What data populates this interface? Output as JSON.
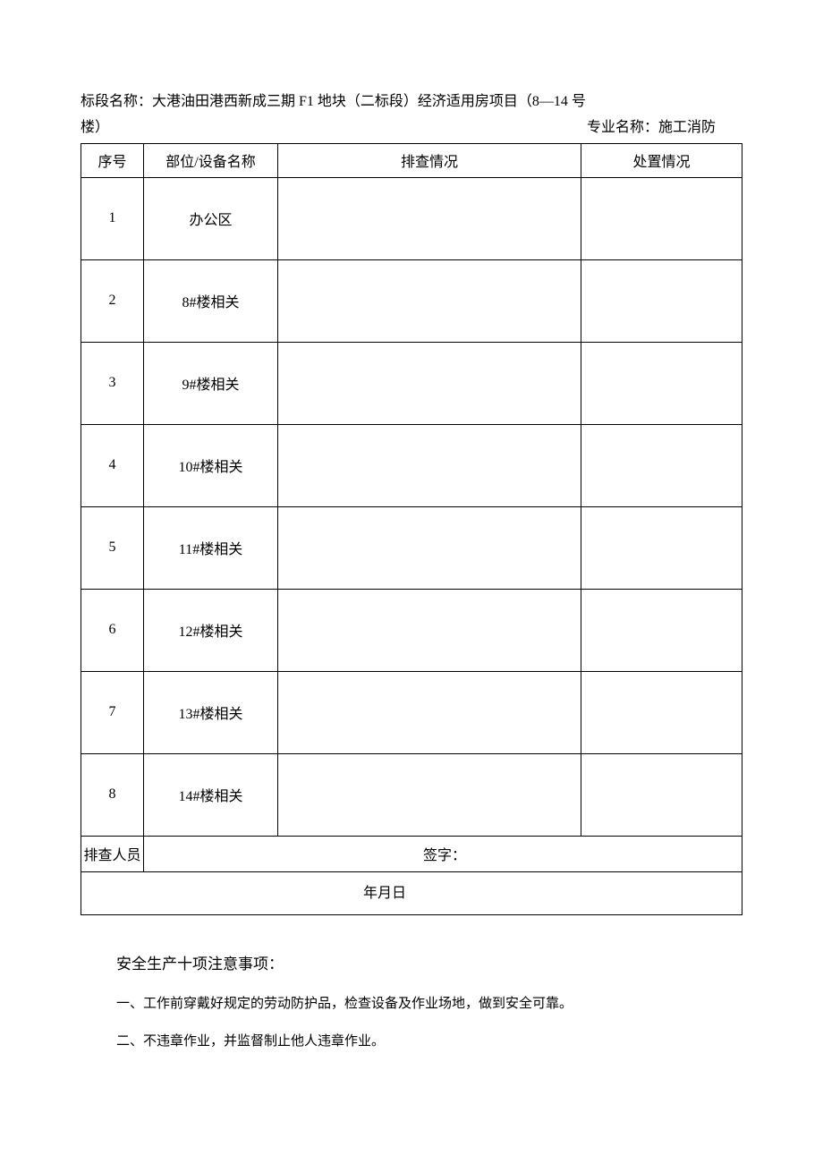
{
  "header": {
    "line1": "标段名称：大港油田港西新成三期 F1 地块（二标段）经济适用房项目（8—14 号",
    "line2_left": "楼）",
    "line2_right": "专业名称：施工消防"
  },
  "table": {
    "columns": [
      "序号",
      "部位/设备名称",
      "排查情况",
      "处置情况"
    ],
    "rows": [
      {
        "seq": "1",
        "name": "办公区",
        "check": "",
        "action": ""
      },
      {
        "seq": "2",
        "name": "8#楼相关",
        "check": "",
        "action": ""
      },
      {
        "seq": "3",
        "name": "9#楼相关",
        "check": "",
        "action": ""
      },
      {
        "seq": "4",
        "name": "10#楼相关",
        "check": "",
        "action": ""
      },
      {
        "seq": "5",
        "name": "11#楼相关",
        "check": "",
        "action": ""
      },
      {
        "seq": "6",
        "name": "12#楼相关",
        "check": "",
        "action": ""
      },
      {
        "seq": "7",
        "name": "13#楼相关",
        "check": "",
        "action": ""
      },
      {
        "seq": "8",
        "name": "14#楼相关",
        "check": "",
        "action": ""
      }
    ],
    "signature": {
      "label": "排查人员",
      "text": "签字："
    },
    "date": "年月日"
  },
  "notes": {
    "title": "安全生产十项注意事项：",
    "items": [
      "一、工作前穿戴好规定的劳动防护品，检查设备及作业场地，做到安全可靠。",
      "二、不违章作业，并监督制止他人违章作业。"
    ]
  }
}
